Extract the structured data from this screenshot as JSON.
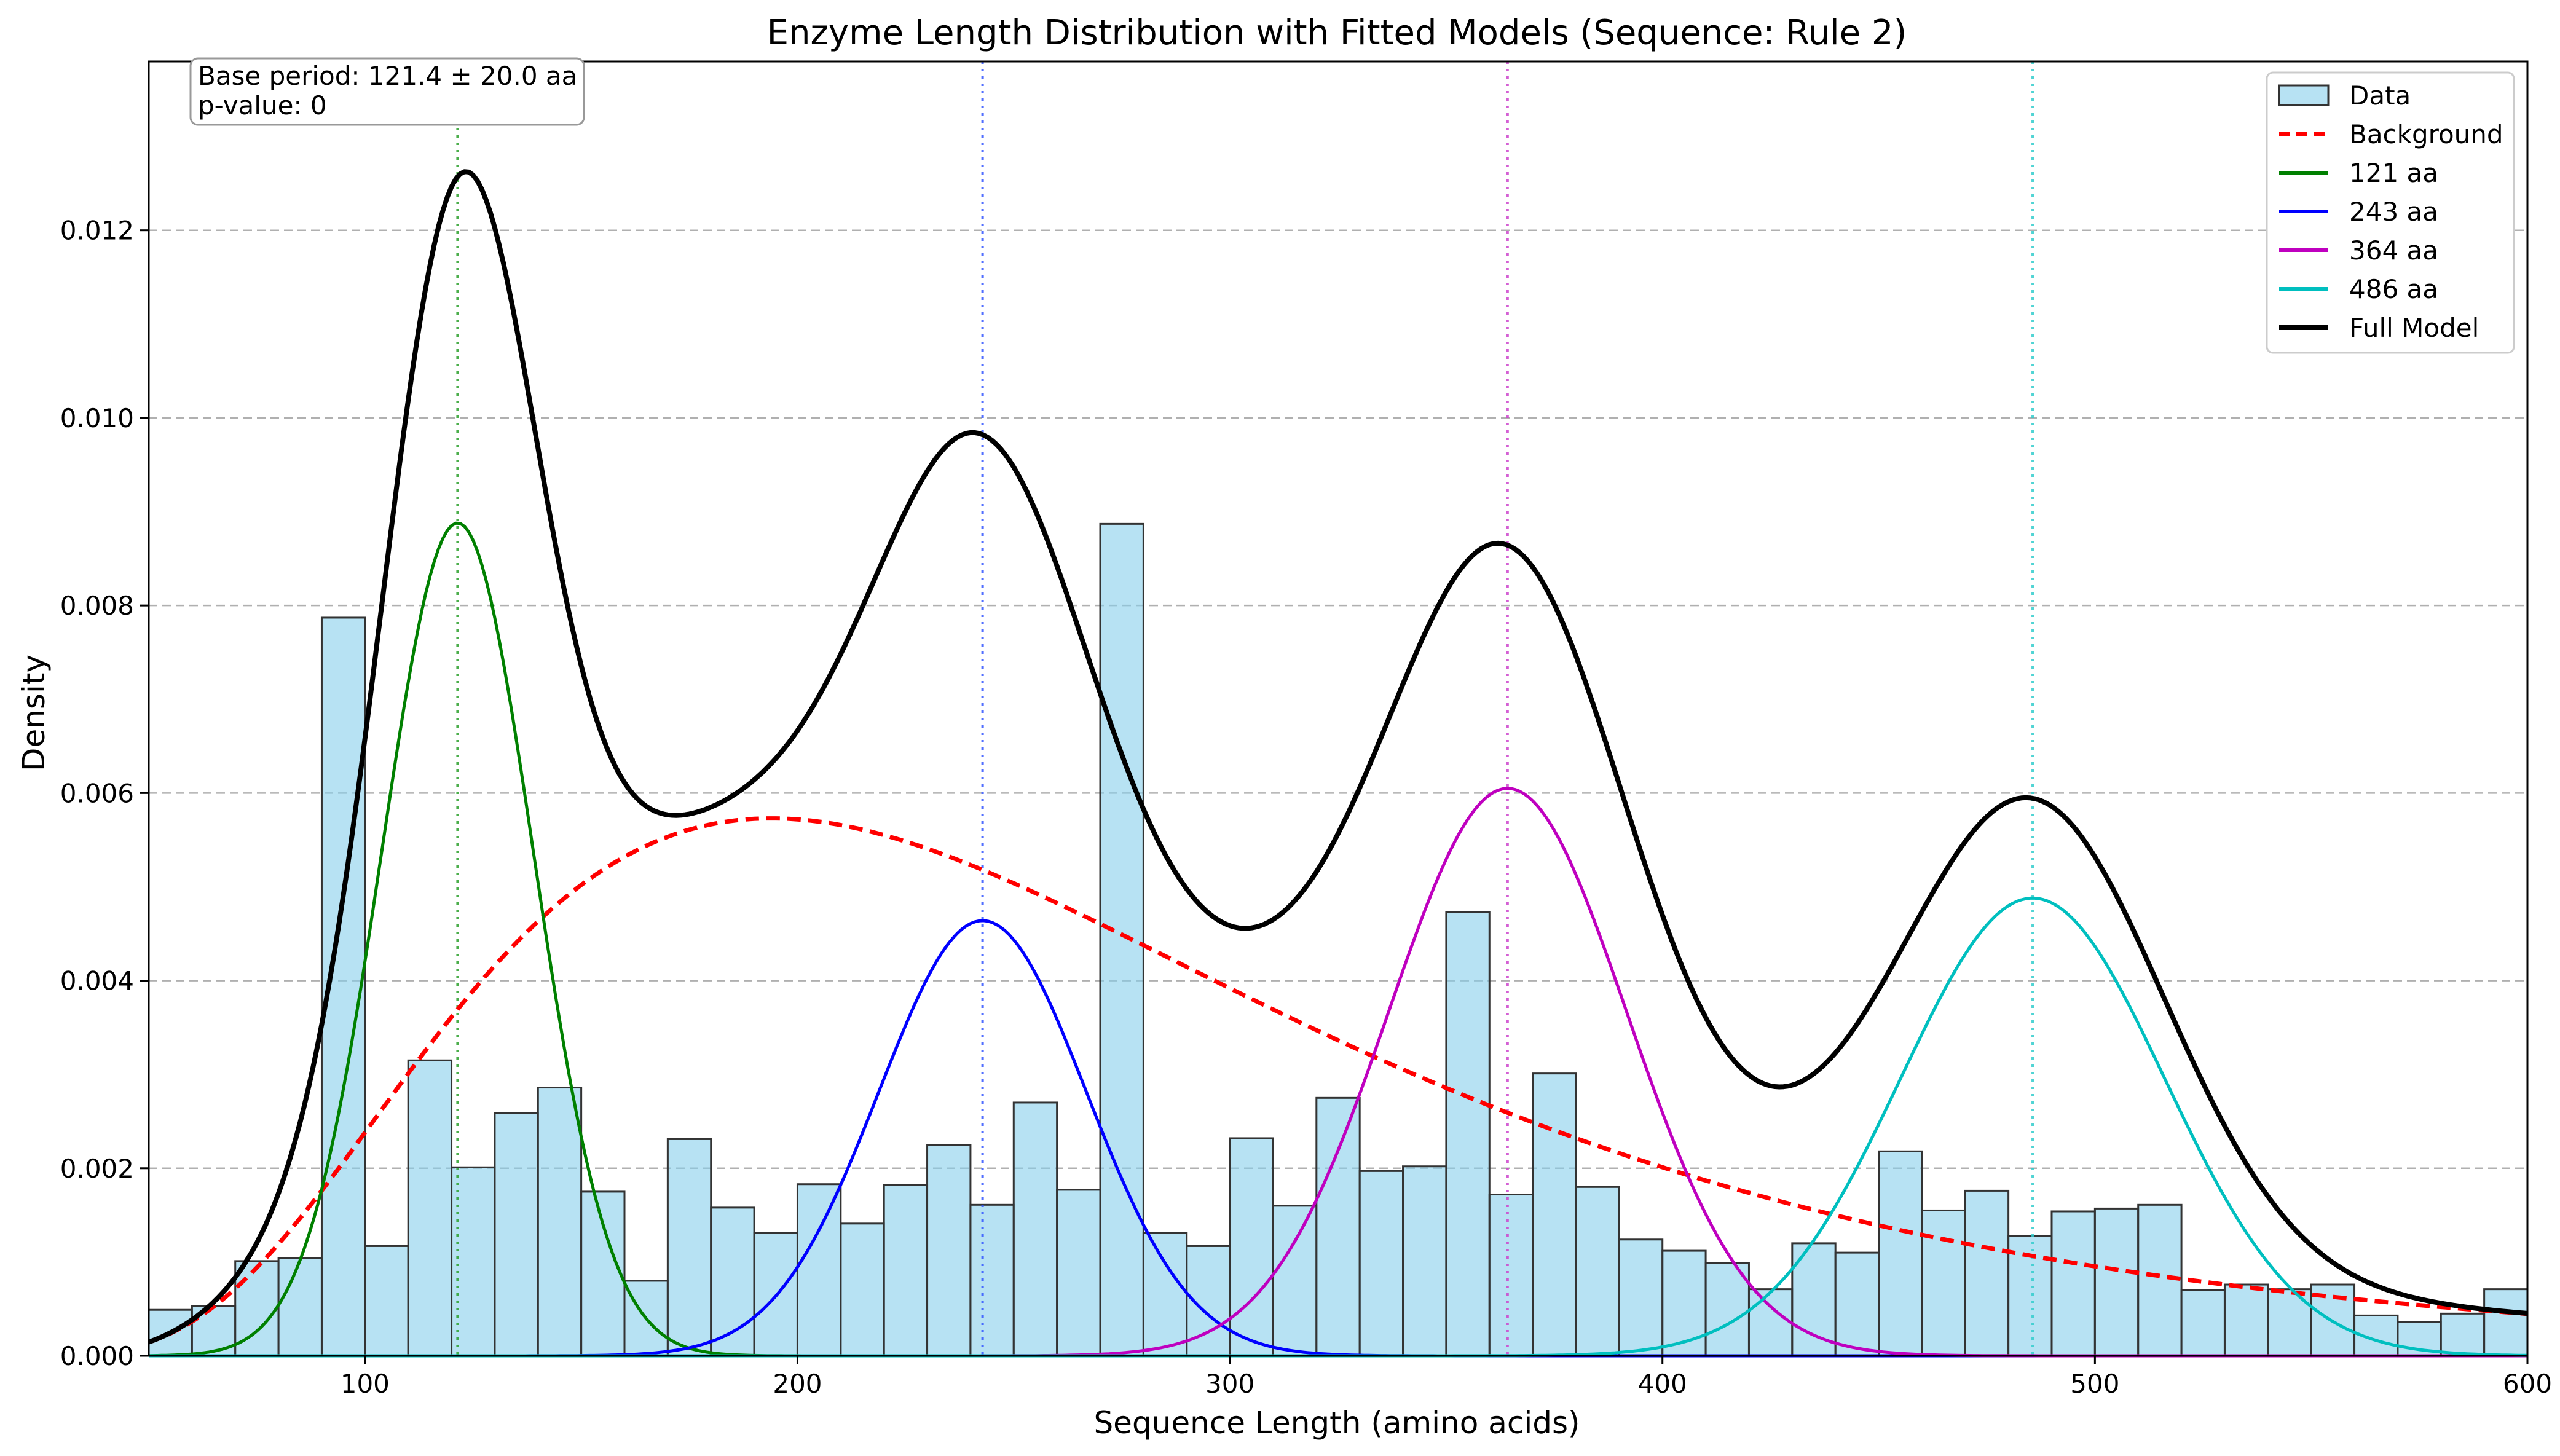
{
  "chart_data": {
    "type": "bar",
    "title": "Enzyme Length Distribution with Fitted Models (Sequence: Rule 2)",
    "xlabel": "Sequence Length (amino acids)",
    "ylabel": "Density",
    "xlim": [
      50,
      600
    ],
    "ylim": [
      0,
      0.0138
    ],
    "x_ticks": [
      100,
      200,
      300,
      400,
      500,
      600
    ],
    "x_tick_labels": [
      "100",
      "200",
      "300",
      "400",
      "500",
      "600"
    ],
    "y_ticks": [
      0,
      0.002,
      0.004,
      0.006,
      0.008,
      0.01,
      0.012
    ],
    "y_tick_labels": [
      "0.000",
      "0.002",
      "0.004",
      "0.006",
      "0.008",
      "0.010",
      "0.012"
    ],
    "grid": "horizontal dashed",
    "legend_position": "top-right",
    "annotation": [
      "Base period: 121.4 ± 20.0 aa",
      "p-value: 0"
    ],
    "histogram": {
      "name": "Data",
      "bin_width": 10,
      "color": "#87ceeb",
      "edge_color": "#333333",
      "bin_edges_start": [
        50,
        60,
        70,
        80,
        90,
        100,
        110,
        120,
        130,
        140,
        150,
        160,
        170,
        180,
        190,
        200,
        210,
        220,
        230,
        240,
        250,
        260,
        270,
        280,
        290,
        300,
        310,
        320,
        330,
        340,
        350,
        360,
        370,
        380,
        390,
        400,
        410,
        420,
        430,
        440,
        450,
        460,
        470,
        480,
        490,
        500,
        510,
        520,
        530,
        540,
        550,
        560,
        570,
        580,
        590
      ],
      "values": [
        0.00049,
        0.00053,
        0.00101,
        0.00104,
        0.00787,
        0.00117,
        0.00315,
        0.00201,
        0.00259,
        0.00286,
        0.00175,
        0.0008,
        0.00231,
        0.00158,
        0.00131,
        0.00183,
        0.00141,
        0.00182,
        0.00225,
        0.00161,
        0.0027,
        0.00177,
        0.00887,
        0.00131,
        0.00117,
        0.00232,
        0.0016,
        0.00275,
        0.00197,
        0.00202,
        0.00473,
        0.00172,
        0.00301,
        0.0018,
        0.00124,
        0.00112,
        0.00099,
        0.00071,
        0.0012,
        0.0011,
        0.00218,
        0.00155,
        0.00176,
        0.00128,
        0.00154,
        0.00157,
        0.00161,
        0.0007,
        0.00076,
        0.00071,
        0.00076,
        0.00043,
        0.00036,
        0.00045,
        0.00071
      ]
    },
    "series": [
      {
        "name": "Background",
        "model": "lognormal",
        "amplitude": 0.00573,
        "mode": 194,
        "sigma": 0.5,
        "color": "#ff0000",
        "style": "dashed"
      },
      {
        "name": "121 aa",
        "model": "gaussian",
        "mu": 121.4,
        "sigma": 17.5,
        "amplitude": 0.00888,
        "color": "#008000",
        "style": "solid"
      },
      {
        "name": "243 aa",
        "model": "gaussian",
        "mu": 242.8,
        "sigma": 24.0,
        "amplitude": 0.00464,
        "color": "#0000ff",
        "style": "solid"
      },
      {
        "name": "364 aa",
        "model": "gaussian",
        "mu": 364.2,
        "sigma": 27.5,
        "amplitude": 0.00605,
        "color": "#bf00bf",
        "style": "solid"
      },
      {
        "name": "486 aa",
        "model": "gaussian",
        "mu": 485.6,
        "sigma": 30.5,
        "amplitude": 0.00488,
        "color": "#00bfbf",
        "style": "solid"
      },
      {
        "name": "Full Model",
        "model": "sum",
        "color": "#000000",
        "style": "solid"
      }
    ],
    "peak_markers": [
      {
        "x": 121.4,
        "color": "#2ca02c"
      },
      {
        "x": 242.8,
        "color": "#3355ff"
      },
      {
        "x": 364.2,
        "color": "#cc44cc"
      },
      {
        "x": 485.6,
        "color": "#33cccc"
      }
    ]
  }
}
